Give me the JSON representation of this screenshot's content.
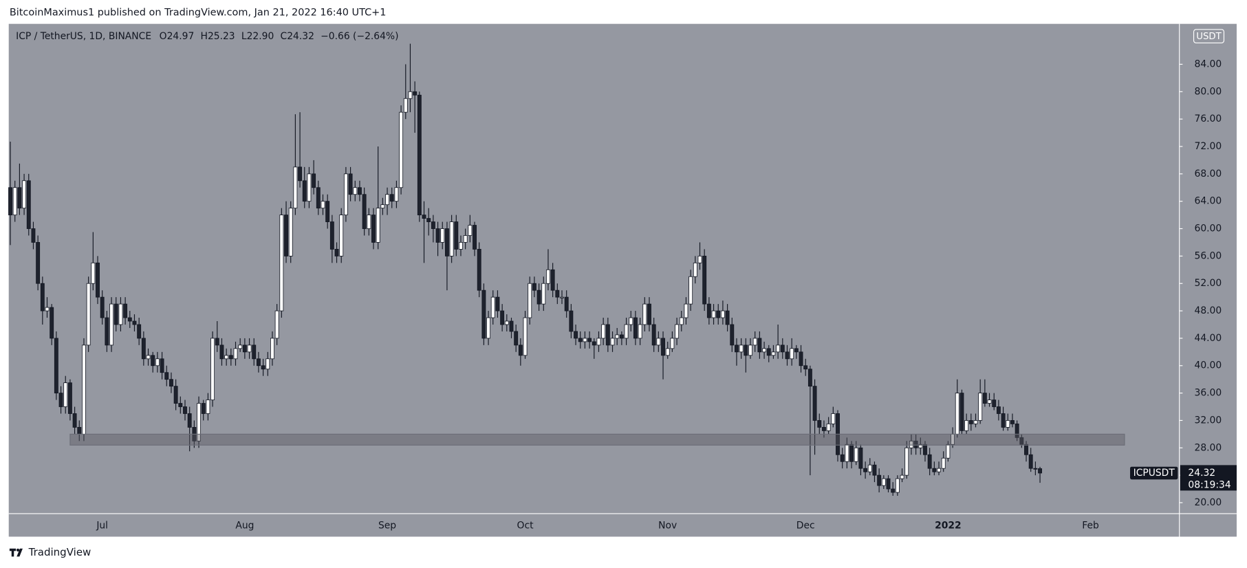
{
  "header": "BitcoinMaximus1 published on TradingView.com, Jan 21, 2022 16:40 UTC+1",
  "footer": "TradingView",
  "chart_data": {
    "type": "candlestick",
    "legend": {
      "symbol": "ICP / TetherUS, 1D, BINANCE",
      "o": "O",
      "h": "H",
      "l": "L",
      "c": "C",
      "change": "−0.66 (−2.64%)"
    },
    "last_candle_labels": [
      "24.97",
      "25.23",
      "22.90",
      "24.32"
    ],
    "ticker": "ICPUSDT",
    "countdown": "08:19:34",
    "currency": "USDT",
    "up_color": "#ffffff",
    "down_color": "#1e222d",
    "wick_color": "#131722",
    "background": "#9598a1",
    "grid": false,
    "support_zone": [
      28.4,
      30.0
    ],
    "ylim": [
      18.4,
      89.9
    ],
    "yticks": [
      {
        "value": 20,
        "label": "20.00"
      },
      {
        "value": 24,
        "label": "24.00"
      },
      {
        "value": 28,
        "label": "28.00"
      },
      {
        "value": 32,
        "label": "32.00"
      },
      {
        "value": 36,
        "label": "36.00"
      },
      {
        "value": 40,
        "label": "40.00"
      },
      {
        "value": 44,
        "label": "44.00"
      },
      {
        "value": 48,
        "label": "48.00"
      },
      {
        "value": 52,
        "label": "52.00"
      },
      {
        "value": 56,
        "label": "56.00"
      },
      {
        "value": 60,
        "label": "60.00"
      },
      {
        "value": 64,
        "label": "64.00"
      },
      {
        "value": 68,
        "label": "68.00"
      },
      {
        "value": 72,
        "label": "72.00"
      },
      {
        "value": 76,
        "label": "76.00"
      },
      {
        "value": 80,
        "label": "80.00"
      },
      {
        "value": 84,
        "label": "84.00"
      }
    ],
    "categories": [
      null,
      null,
      null,
      null,
      null,
      null,
      null,
      null,
      null,
      null,
      null,
      null,
      null,
      null,
      null,
      null,
      null,
      null,
      null,
      null,
      "Jul",
      null,
      null,
      null,
      null,
      null,
      null,
      null,
      null,
      null,
      null,
      null,
      null,
      null,
      null,
      null,
      null,
      null,
      null,
      null,
      null,
      null,
      null,
      null,
      null,
      null,
      null,
      null,
      null,
      null,
      null,
      "Aug",
      null,
      null,
      null,
      null,
      null,
      null,
      null,
      null,
      null,
      null,
      null,
      null,
      null,
      null,
      null,
      null,
      null,
      null,
      null,
      null,
      null,
      null,
      null,
      null,
      null,
      null,
      null,
      null,
      null,
      null,
      "Sep",
      null,
      null,
      null,
      null,
      null,
      null,
      null,
      null,
      null,
      null,
      null,
      null,
      null,
      null,
      null,
      null,
      null,
      null,
      null,
      null,
      null,
      null,
      null,
      null,
      null,
      null,
      null,
      null,
      null,
      "Oct",
      null,
      null,
      null,
      null,
      null,
      null,
      null,
      null,
      null,
      null,
      null,
      null,
      null,
      null,
      null,
      null,
      null,
      null,
      null,
      null,
      null,
      null,
      null,
      null,
      null,
      null,
      null,
      null,
      null,
      null,
      "Nov",
      null,
      null,
      null,
      null,
      null,
      null,
      null,
      null,
      null,
      null,
      null,
      null,
      null,
      null,
      null,
      null,
      null,
      null,
      null,
      null,
      null,
      null,
      null,
      null,
      null,
      null,
      null,
      null,
      null,
      "Dec",
      null,
      null,
      null,
      null,
      null,
      null,
      null,
      null,
      null,
      null,
      null,
      null,
      null,
      null,
      null,
      null,
      null,
      null,
      null,
      null,
      null,
      null,
      null,
      null,
      null,
      null,
      null,
      null,
      null,
      null,
      "2022",
      null,
      null,
      null,
      null,
      null,
      null,
      null,
      null,
      null,
      null,
      null,
      null,
      null,
      null,
      null,
      null,
      null,
      null,
      null,
      null,
      null,
      null,
      null,
      null,
      null,
      null,
      null,
      null,
      null,
      null,
      "Feb"
    ],
    "candles": [
      [
        66,
        72.7,
        57.6,
        62
      ],
      [
        62,
        67,
        61,
        66
      ],
      [
        66,
        69.5,
        62,
        63
      ],
      [
        63,
        68,
        62,
        67
      ],
      [
        67,
        68,
        59,
        60
      ],
      [
        60,
        61,
        57,
        58
      ],
      [
        58,
        59,
        51,
        52
      ],
      [
        52,
        53,
        46,
        48
      ],
      [
        48,
        50,
        47,
        48.5
      ],
      [
        48.5,
        49,
        43,
        44
      ],
      [
        44,
        45,
        35,
        36
      ],
      [
        36,
        37,
        33,
        34
      ],
      [
        34,
        38.5,
        33,
        37.5
      ],
      [
        37.5,
        38,
        32,
        33
      ],
      [
        33,
        34,
        30,
        31
      ],
      [
        31,
        32,
        29,
        30
      ],
      [
        30,
        44,
        29,
        43
      ],
      [
        43,
        53,
        42,
        52
      ],
      [
        52,
        59.5,
        51,
        55
      ],
      [
        55,
        56,
        49,
        50
      ],
      [
        50,
        51,
        46,
        47
      ],
      [
        47,
        48,
        42,
        43
      ],
      [
        43,
        50,
        42,
        49
      ],
      [
        49,
        50,
        45,
        46
      ],
      [
        46,
        50,
        45,
        49
      ],
      [
        49,
        50,
        46,
        47
      ],
      [
        47,
        48,
        45.5,
        46.5
      ],
      [
        46.5,
        47.5,
        45,
        46
      ],
      [
        46,
        47,
        43,
        44
      ],
      [
        44,
        45,
        40,
        41
      ],
      [
        41,
        42.5,
        40,
        41.5
      ],
      [
        41.5,
        42,
        39,
        40
      ],
      [
        40,
        42,
        39,
        41
      ],
      [
        41,
        42,
        38,
        39
      ],
      [
        39,
        40,
        37,
        38
      ],
      [
        38,
        39,
        36,
        37
      ],
      [
        37,
        38,
        33.5,
        34.5
      ],
      [
        34.5,
        35.5,
        33,
        34
      ],
      [
        34,
        35,
        32,
        33
      ],
      [
        33,
        34,
        27.5,
        31
      ],
      [
        31,
        32,
        28,
        29
      ],
      [
        29,
        35.5,
        28,
        34.5
      ],
      [
        34.5,
        35,
        32,
        33
      ],
      [
        33,
        36,
        32,
        35
      ],
      [
        35,
        45,
        34,
        44
      ],
      [
        44,
        46.5,
        42,
        43
      ],
      [
        43,
        44,
        40,
        41
      ],
      [
        41,
        42.5,
        40,
        41.5
      ],
      [
        41.5,
        42.5,
        40,
        41
      ],
      [
        41,
        43.5,
        40,
        42.5
      ],
      [
        42.5,
        44,
        42,
        43
      ],
      [
        43,
        44,
        41,
        42
      ],
      [
        42,
        44,
        41,
        43
      ],
      [
        43,
        44,
        40,
        41
      ],
      [
        41,
        42,
        39,
        40
      ],
      [
        40,
        41,
        38.5,
        39.5
      ],
      [
        39.5,
        42,
        38.5,
        41
      ],
      [
        41,
        45,
        40,
        44
      ],
      [
        44,
        49,
        43,
        48
      ],
      [
        48,
        63,
        47,
        62
      ],
      [
        62,
        64,
        55,
        56
      ],
      [
        56,
        64,
        55,
        63
      ],
      [
        63,
        76.7,
        62,
        69
      ],
      [
        69,
        77,
        66,
        67
      ],
      [
        67,
        69,
        63,
        64
      ],
      [
        64,
        69,
        63,
        68
      ],
      [
        68,
        70,
        65,
        66
      ],
      [
        66,
        67,
        62,
        63
      ],
      [
        63,
        65,
        62,
        64
      ],
      [
        64,
        65,
        60,
        61
      ],
      [
        61,
        62,
        55,
        57
      ],
      [
        57,
        58,
        55,
        56
      ],
      [
        56,
        63,
        55,
        62
      ],
      [
        62,
        69,
        61,
        68
      ],
      [
        68,
        69,
        64,
        65
      ],
      [
        65,
        67,
        64,
        66
      ],
      [
        66,
        67,
        64,
        65
      ],
      [
        65,
        66,
        59,
        60
      ],
      [
        60,
        63,
        59,
        62
      ],
      [
        62,
        63,
        57,
        58
      ],
      [
        58,
        72,
        57,
        63
      ],
      [
        63,
        64.5,
        62,
        63.5
      ],
      [
        63.5,
        66,
        62,
        65
      ],
      [
        65,
        66,
        63,
        64
      ],
      [
        64,
        67,
        63,
        66
      ],
      [
        66,
        78,
        65,
        77
      ],
      [
        77,
        84,
        76,
        79
      ],
      [
        79,
        87,
        77,
        80
      ],
      [
        80,
        81.5,
        74,
        79.5
      ],
      [
        79.5,
        80,
        61,
        62
      ],
      [
        62,
        64,
        55,
        61.5
      ],
      [
        61.5,
        63,
        59,
        61
      ],
      [
        61,
        62,
        58,
        60
      ],
      [
        60,
        61,
        56,
        58
      ],
      [
        58,
        61,
        57,
        60
      ],
      [
        60,
        61,
        51,
        56
      ],
      [
        56,
        62,
        55,
        61
      ],
      [
        61,
        62,
        56,
        57
      ],
      [
        57,
        59,
        56,
        58
      ],
      [
        58,
        60,
        57,
        59
      ],
      [
        59,
        62,
        58,
        60.5
      ],
      [
        60.5,
        61,
        56,
        57
      ],
      [
        57,
        58,
        50,
        51
      ],
      [
        51,
        52,
        43,
        44
      ],
      [
        44,
        48,
        43,
        47
      ],
      [
        47,
        51,
        46,
        50
      ],
      [
        50,
        51,
        47,
        48
      ],
      [
        48,
        49,
        45,
        46
      ],
      [
        46,
        47.5,
        45,
        46.5
      ],
      [
        46.5,
        47,
        44,
        45
      ],
      [
        45,
        46,
        42,
        43
      ],
      [
        43,
        44,
        40,
        41.5
      ],
      [
        41.5,
        48,
        41,
        47
      ],
      [
        47,
        53,
        46,
        52
      ],
      [
        52,
        53,
        50,
        51
      ],
      [
        51,
        52,
        48,
        49
      ],
      [
        49,
        53,
        48,
        52
      ],
      [
        52,
        57,
        51,
        54
      ],
      [
        54,
        55,
        50,
        51
      ],
      [
        51,
        52,
        49,
        50
      ],
      [
        50,
        51,
        49,
        50
      ],
      [
        50,
        51,
        47,
        48
      ],
      [
        48,
        49,
        44,
        45
      ],
      [
        45,
        46,
        43,
        44
      ],
      [
        44,
        45,
        42.5,
        43.5
      ],
      [
        43.5,
        45,
        42.5,
        44
      ],
      [
        44,
        45,
        42.5,
        43.5
      ],
      [
        43.5,
        44,
        41,
        43
      ],
      [
        43,
        45,
        42,
        44
      ],
      [
        44,
        47,
        43,
        46
      ],
      [
        46,
        47,
        42,
        43
      ],
      [
        43,
        45,
        42,
        44
      ],
      [
        44,
        45.5,
        43,
        44.5
      ],
      [
        44.5,
        45,
        43,
        44
      ],
      [
        44,
        47,
        43,
        46
      ],
      [
        46,
        48,
        45,
        47
      ],
      [
        47,
        48,
        43,
        44
      ],
      [
        44,
        47,
        43,
        46
      ],
      [
        46,
        50,
        45,
        49
      ],
      [
        49,
        50,
        45,
        46
      ],
      [
        46,
        47,
        42,
        43
      ],
      [
        43,
        45,
        42,
        44
      ],
      [
        44,
        45,
        38,
        41.5
      ],
      [
        41.5,
        43.5,
        41,
        42.5
      ],
      [
        42.5,
        45,
        42,
        44
      ],
      [
        44,
        47,
        43,
        46
      ],
      [
        46,
        48,
        45,
        47
      ],
      [
        47,
        50,
        46,
        49
      ],
      [
        49,
        54,
        48,
        53
      ],
      [
        53,
        56,
        52,
        55
      ],
      [
        55,
        58,
        54,
        56
      ],
      [
        56,
        57,
        48,
        49
      ],
      [
        49,
        50,
        46,
        47
      ],
      [
        47,
        49,
        46,
        48
      ],
      [
        48,
        49,
        46,
        47
      ],
      [
        47,
        49.5,
        46,
        48
      ],
      [
        48,
        49,
        45,
        46
      ],
      [
        46,
        47,
        42,
        43
      ],
      [
        43,
        44,
        40,
        42
      ],
      [
        42,
        44,
        41,
        43
      ],
      [
        43,
        44,
        39,
        41.5
      ],
      [
        41.5,
        44,
        41,
        43
      ],
      [
        43,
        45,
        42,
        44
      ],
      [
        44,
        45,
        41,
        42
      ],
      [
        42,
        43.5,
        41,
        42.5
      ],
      [
        42.5,
        43,
        40.5,
        41.5
      ],
      [
        41.5,
        43,
        41,
        42
      ],
      [
        42,
        46,
        41,
        43
      ],
      [
        43,
        44,
        41,
        42
      ],
      [
        42,
        43,
        40,
        41
      ],
      [
        41,
        44,
        40,
        42.5
      ],
      [
        42.5,
        43,
        41,
        42
      ],
      [
        42,
        43,
        39,
        40
      ],
      [
        40,
        41,
        38.5,
        39.5
      ],
      [
        39.5,
        40,
        24,
        37
      ],
      [
        37,
        38,
        27,
        32
      ],
      [
        32,
        33,
        30,
        31
      ],
      [
        31,
        32,
        29.5,
        30.5
      ],
      [
        30.5,
        32.5,
        30,
        31.5
      ],
      [
        31.5,
        34,
        31,
        33
      ],
      [
        33,
        33.5,
        26,
        27
      ],
      [
        27,
        28,
        25,
        26
      ],
      [
        26,
        29.5,
        25,
        28.5
      ],
      [
        28.5,
        29,
        25,
        26
      ],
      [
        26,
        29,
        25.5,
        28
      ],
      [
        28,
        28.5,
        24,
        25
      ],
      [
        25,
        26,
        23.5,
        24.5
      ],
      [
        24.5,
        26.5,
        24,
        25.5
      ],
      [
        25.5,
        26,
        23,
        24
      ],
      [
        24,
        25,
        21.5,
        22.5
      ],
      [
        22.5,
        24,
        22,
        23.5
      ],
      [
        23.5,
        24,
        21.5,
        22
      ],
      [
        22,
        23,
        21,
        21.5
      ],
      [
        21.5,
        24,
        21,
        23.5
      ],
      [
        23.5,
        25,
        23,
        24
      ],
      [
        24,
        29,
        23.5,
        28
      ],
      [
        28,
        30,
        27,
        29
      ],
      [
        29,
        30,
        27,
        28
      ],
      [
        28,
        29.5,
        27,
        28.5
      ],
      [
        28.5,
        29,
        26,
        27
      ],
      [
        27,
        28,
        24,
        25
      ],
      [
        25,
        26,
        24,
        24.5
      ],
      [
        24.5,
        26,
        24,
        25
      ],
      [
        25,
        27.5,
        24.5,
        26.5
      ],
      [
        26.5,
        29,
        26,
        28.5
      ],
      [
        28.5,
        31,
        28,
        30
      ],
      [
        30,
        38,
        29.5,
        36
      ],
      [
        36,
        36.5,
        30,
        30.5
      ],
      [
        30.5,
        33,
        30,
        32
      ],
      [
        32,
        33,
        30.5,
        31.5
      ],
      [
        31.5,
        33,
        31,
        32
      ],
      [
        32,
        38,
        31.5,
        36
      ],
      [
        36,
        38,
        34,
        34.5
      ],
      [
        34.5,
        36,
        34,
        35
      ],
      [
        35,
        36,
        33.5,
        34
      ],
      [
        34,
        35,
        32,
        33
      ],
      [
        33,
        34,
        30.5,
        31
      ],
      [
        31,
        33,
        30.5,
        32
      ],
      [
        32,
        33,
        31,
        31.5
      ],
      [
        31.5,
        32,
        29,
        29.5
      ],
      [
        29.5,
        30,
        28,
        28.5
      ],
      [
        28.5,
        29,
        26,
        27
      ],
      [
        27,
        28,
        24.5,
        25
      ],
      [
        25,
        26,
        24,
        24.97
      ],
      [
        24.97,
        25.23,
        22.9,
        24.32
      ],
      null,
      null,
      null,
      null,
      null,
      null,
      null,
      null,
      null,
      null,
      null
    ]
  }
}
